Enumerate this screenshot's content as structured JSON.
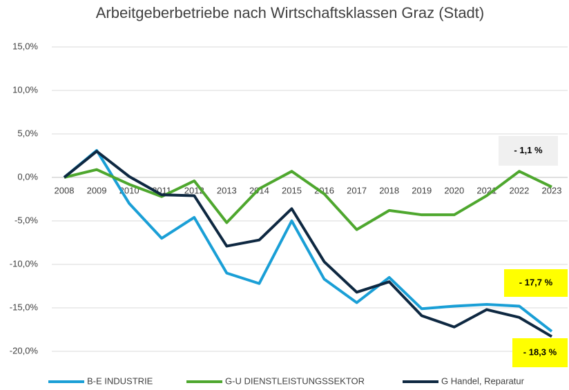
{
  "chart_data": {
    "type": "line",
    "title": "Arbeitgeberbetriebe nach Wirtschaftsklassen Graz (Stadt)",
    "categories": [
      "2008",
      "2009",
      "2010",
      "2011",
      "2012",
      "2013",
      "2014",
      "2015",
      "2016",
      "2017",
      "2018",
      "2019",
      "2020",
      "2021",
      "2022",
      "2023"
    ],
    "series": [
      {
        "name": "B-E INDUSTRIE",
        "color": "#1a9fd6",
        "values": [
          0,
          3.1,
          -3.0,
          -7.0,
          -4.6,
          -11.0,
          -12.2,
          -5.0,
          -11.7,
          -14.4,
          -11.5,
          -15.1,
          -14.8,
          -14.6,
          -14.8,
          -17.7
        ]
      },
      {
        "name": "G-U DIENSTLEISTUNGSSEKTOR",
        "color": "#4ea72e",
        "values": [
          0,
          0.9,
          -0.8,
          -2.2,
          -0.4,
          -5.2,
          -1.3,
          0.7,
          -1.9,
          -6.0,
          -3.8,
          -4.3,
          -4.3,
          -2.1,
          0.7,
          -1.1
        ]
      },
      {
        "name": "G Handel, Reparatur",
        "color": "#0e2841",
        "values": [
          0,
          3.0,
          0.1,
          -2.0,
          -2.1,
          -7.9,
          -7.2,
          -3.6,
          -9.7,
          -13.2,
          -12.0,
          -15.9,
          -17.2,
          -15.2,
          -16.1,
          -18.3
        ]
      }
    ],
    "ylim": [
      -20,
      15
    ],
    "yticks": [
      {
        "value": -20,
        "label": "-20,0%"
      },
      {
        "value": -15,
        "label": "-15,0%"
      },
      {
        "value": -10,
        "label": "-10,0%"
      },
      {
        "value": -5,
        "label": "-5,0%"
      },
      {
        "value": 0,
        "label": "0,0%"
      },
      {
        "value": 5,
        "label": "5,0%"
      },
      {
        "value": 10,
        "label": "10,0%"
      },
      {
        "value": 15,
        "label": "15,0%"
      }
    ],
    "grid": true,
    "legend": "bottom",
    "annotations": [
      {
        "text": "- 1,1 %",
        "color": "#f0f0f0"
      },
      {
        "text": "- 17,7 %",
        "color": "#ffff00"
      },
      {
        "text": "- 18,3 %",
        "color": "#ffff00"
      }
    ]
  }
}
